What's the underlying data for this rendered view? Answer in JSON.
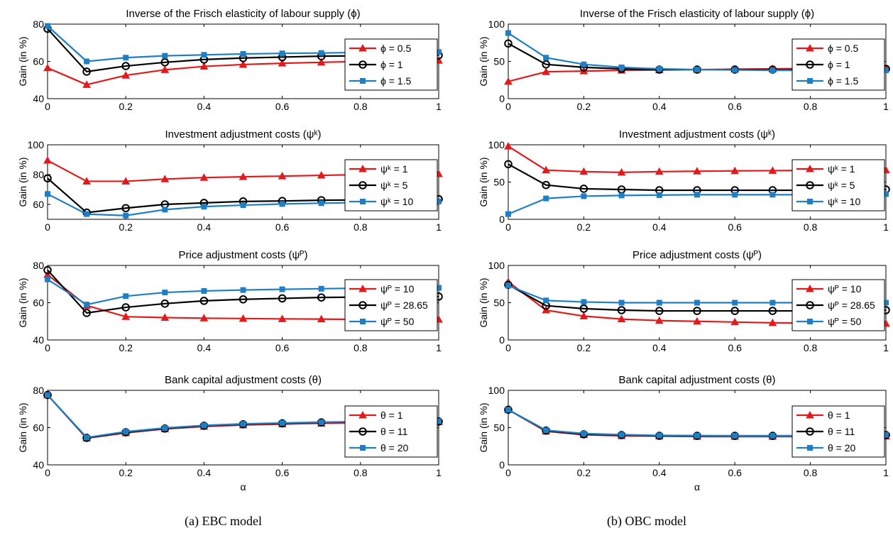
{
  "captions": [
    "(a)  EBC model",
    "(b)  OBC model"
  ],
  "colors": {
    "red": "#e31a1c",
    "black": "#000000",
    "blue": "#1f7fc4"
  },
  "chart_data": [
    {
      "type": "line",
      "panel": "a1",
      "title": "Inverse of the Frisch elasticity of labour supply (ϕ)",
      "xlabel": "",
      "ylabel": "Gain (in %)",
      "xlim": [
        0,
        1
      ],
      "ylim": [
        40,
        80
      ],
      "yticks": [
        40,
        60,
        80
      ],
      "xticks": [
        0,
        0.2,
        0.4,
        0.6,
        0.8,
        1
      ],
      "x": [
        0,
        0.1,
        0.2,
        0.3,
        0.4,
        0.5,
        0.6,
        0.7,
        0.8,
        1
      ],
      "series": [
        {
          "name": "ϕ = 0.5",
          "color": "#e31a1c",
          "marker": "triangle",
          "values": [
            56.5,
            47.5,
            52.5,
            55.5,
            57.3,
            58.3,
            59,
            59.5,
            60,
            60.5
          ]
        },
        {
          "name": "ϕ = 1",
          "color": "#000000",
          "marker": "circle",
          "values": [
            77.5,
            54.5,
            57.5,
            59.5,
            61,
            61.8,
            62.3,
            62.8,
            63,
            63.3
          ]
        },
        {
          "name": "ϕ = 1.5",
          "color": "#1f7fc4",
          "marker": "square",
          "values": [
            79,
            60,
            62,
            63,
            63.5,
            64,
            64.3,
            64.5,
            64.8,
            65
          ]
        }
      ]
    },
    {
      "type": "line",
      "panel": "a2",
      "title": "Investment adjustment costs (ψᵏ)",
      "xlabel": "",
      "ylabel": "Gain (in %)",
      "xlim": [
        0,
        1
      ],
      "ylim": [
        50,
        100
      ],
      "yticks": [
        60,
        80,
        100
      ],
      "xticks": [
        0,
        0.2,
        0.4,
        0.6,
        0.8,
        1
      ],
      "x": [
        0,
        0.1,
        0.2,
        0.3,
        0.4,
        0.5,
        0.6,
        0.7,
        0.8,
        1
      ],
      "series": [
        {
          "name": "ψᵏ = 1",
          "color": "#e31a1c",
          "marker": "triangle",
          "values": [
            89.5,
            75.5,
            75.5,
            77,
            78,
            78.5,
            79,
            79.5,
            80,
            80.5
          ]
        },
        {
          "name": "ψᵏ = 5",
          "color": "#000000",
          "marker": "circle",
          "values": [
            77.5,
            54.5,
            57.5,
            60,
            61,
            62,
            62.3,
            62.8,
            63,
            63.5
          ]
        },
        {
          "name": "ψᵏ = 10",
          "color": "#1f7fc4",
          "marker": "square",
          "values": [
            67,
            53.5,
            52.5,
            56.5,
            58.5,
            59.5,
            60.3,
            60.8,
            61.3,
            62
          ]
        }
      ]
    },
    {
      "type": "line",
      "panel": "a3",
      "title": "Price adjustment costs (ψᴾ)",
      "xlabel": "",
      "ylabel": "Gain (in %)",
      "xlim": [
        0,
        1
      ],
      "ylim": [
        40,
        80
      ],
      "yticks": [
        40,
        60,
        80
      ],
      "xticks": [
        0,
        0.2,
        0.4,
        0.6,
        0.8,
        1
      ],
      "x": [
        0,
        0.1,
        0.2,
        0.3,
        0.4,
        0.5,
        0.6,
        0.7,
        0.8,
        1
      ],
      "series": [
        {
          "name": "ψᴾ = 10",
          "color": "#e31a1c",
          "marker": "triangle",
          "values": [
            75,
            58.5,
            52.5,
            52,
            51.7,
            51.5,
            51.3,
            51.2,
            51,
            51
          ]
        },
        {
          "name": "ψᴾ = 28.65",
          "color": "#000000",
          "marker": "circle",
          "values": [
            77.5,
            54.5,
            57.5,
            59.5,
            61,
            61.8,
            62.3,
            62.8,
            63,
            63.3
          ]
        },
        {
          "name": "ψᴾ = 50",
          "color": "#1f7fc4",
          "marker": "square",
          "values": [
            72.5,
            59,
            63.5,
            65.5,
            66.3,
            66.8,
            67.2,
            67.5,
            67.8,
            68
          ]
        }
      ]
    },
    {
      "type": "line",
      "panel": "a4",
      "title": "Bank capital adjustment costs (θ)",
      "xlabel": "α",
      "ylabel": "Gain (in %)",
      "xlim": [
        0,
        1
      ],
      "ylim": [
        40,
        80
      ],
      "yticks": [
        40,
        60,
        80
      ],
      "xticks": [
        0,
        0.2,
        0.4,
        0.6,
        0.8,
        1
      ],
      "x": [
        0,
        0.1,
        0.2,
        0.3,
        0.4,
        0.5,
        0.6,
        0.7,
        0.8,
        1
      ],
      "series": [
        {
          "name": "θ = 1",
          "color": "#e31a1c",
          "marker": "triangle",
          "values": [
            77.5,
            54.3,
            57.2,
            59.3,
            60.6,
            61.4,
            61.9,
            62.3,
            62.6,
            63.1
          ]
        },
        {
          "name": "θ = 11",
          "color": "#000000",
          "marker": "circle",
          "values": [
            77.5,
            54.5,
            57.5,
            59.5,
            61,
            61.8,
            62.3,
            62.8,
            63,
            63.3
          ]
        },
        {
          "name": "θ = 20",
          "color": "#1f7fc4",
          "marker": "square",
          "values": [
            77.5,
            54.7,
            57.8,
            59.8,
            61.2,
            62,
            62.5,
            62.9,
            63.2,
            63.5
          ]
        }
      ]
    },
    {
      "type": "line",
      "panel": "b1",
      "title": "Inverse of the Frisch elasticity of labour supply (ϕ)",
      "xlabel": "",
      "ylabel": "Gain (in %)",
      "xlim": [
        0,
        1
      ],
      "ylim": [
        0,
        100
      ],
      "yticks": [
        0,
        50,
        100
      ],
      "xticks": [
        0,
        0.2,
        0.4,
        0.6,
        0.8,
        1
      ],
      "x": [
        0,
        0.1,
        0.2,
        0.3,
        0.4,
        0.5,
        0.6,
        0.7,
        0.8,
        1
      ],
      "series": [
        {
          "name": "ϕ = 0.5",
          "color": "#e31a1c",
          "marker": "triangle",
          "values": [
            23,
            36,
            37,
            38,
            38.5,
            39,
            39.5,
            40,
            40.5,
            41
          ]
        },
        {
          "name": "ϕ = 1",
          "color": "#000000",
          "marker": "circle",
          "values": [
            74,
            46,
            42,
            40,
            39,
            39,
            39,
            39,
            39,
            40
          ]
        },
        {
          "name": "ϕ = 1.5",
          "color": "#1f7fc4",
          "marker": "square",
          "values": [
            88,
            55,
            46,
            42,
            40,
            39,
            38.5,
            38,
            38,
            38
          ]
        }
      ]
    },
    {
      "type": "line",
      "panel": "b2",
      "title": "Investment adjustment costs (ψᵏ)",
      "xlabel": "",
      "ylabel": "Gain (in %)",
      "xlim": [
        0,
        1
      ],
      "ylim": [
        0,
        100
      ],
      "yticks": [
        0,
        50,
        100
      ],
      "xticks": [
        0,
        0.2,
        0.4,
        0.6,
        0.8,
        1
      ],
      "x": [
        0,
        0.1,
        0.2,
        0.3,
        0.4,
        0.5,
        0.6,
        0.7,
        0.8,
        1
      ],
      "series": [
        {
          "name": "ψᵏ = 1",
          "color": "#e31a1c",
          "marker": "triangle",
          "values": [
            98,
            66,
            64,
            63,
            64,
            64.5,
            65,
            65.3,
            65.7,
            66
          ]
        },
        {
          "name": "ψᵏ = 5",
          "color": "#000000",
          "marker": "circle",
          "values": [
            74,
            46,
            41,
            40,
            39,
            39,
            39,
            39,
            39,
            40
          ]
        },
        {
          "name": "ψᵏ = 10",
          "color": "#1f7fc4",
          "marker": "square",
          "values": [
            7,
            28,
            31,
            32,
            32.5,
            33,
            33,
            33,
            33,
            34
          ]
        }
      ]
    },
    {
      "type": "line",
      "panel": "b3",
      "title": "Price adjustment costs (ψᴾ)",
      "xlabel": "",
      "ylabel": "Gain (in %)",
      "xlim": [
        0,
        1
      ],
      "ylim": [
        0,
        100
      ],
      "yticks": [
        0,
        50,
        100
      ],
      "xticks": [
        0,
        0.2,
        0.4,
        0.6,
        0.8,
        1
      ],
      "x": [
        0,
        0.1,
        0.2,
        0.3,
        0.4,
        0.5,
        0.6,
        0.7,
        0.8,
        1
      ],
      "series": [
        {
          "name": "ψᴾ = 10",
          "color": "#e31a1c",
          "marker": "triangle",
          "values": [
            78,
            40,
            32,
            28,
            26,
            25,
            24,
            23,
            22.5,
            22
          ]
        },
        {
          "name": "ψᴾ = 28.65",
          "color": "#000000",
          "marker": "circle",
          "values": [
            74,
            46,
            42,
            40,
            39,
            39,
            39,
            39,
            39,
            40
          ]
        },
        {
          "name": "ψᴾ = 50",
          "color": "#1f7fc4",
          "marker": "square",
          "values": [
            73,
            53,
            51,
            50,
            50,
            50,
            50,
            50,
            50,
            50
          ]
        }
      ]
    },
    {
      "type": "line",
      "panel": "b4",
      "title": "Bank capital adjustment costs (θ)",
      "xlabel": "α",
      "ylabel": "Gain (in %)",
      "xlim": [
        0,
        1
      ],
      "ylim": [
        0,
        100
      ],
      "yticks": [
        0,
        50,
        100
      ],
      "xticks": [
        0,
        0.2,
        0.4,
        0.6,
        0.8,
        1
      ],
      "x": [
        0,
        0.1,
        0.2,
        0.3,
        0.4,
        0.5,
        0.6,
        0.7,
        0.8,
        1
      ],
      "series": [
        {
          "name": "θ = 1",
          "color": "#e31a1c",
          "marker": "triangle",
          "values": [
            74,
            45,
            40.5,
            39,
            38.5,
            38,
            38,
            38,
            38,
            38.5
          ]
        },
        {
          "name": "θ = 11",
          "color": "#000000",
          "marker": "circle",
          "values": [
            74,
            46,
            41,
            40,
            39,
            39,
            39,
            39,
            39,
            40
          ]
        },
        {
          "name": "θ = 20",
          "color": "#1f7fc4",
          "marker": "square",
          "values": [
            74,
            46.5,
            42,
            40.5,
            39.5,
            39.3,
            39.2,
            39.2,
            39.2,
            40.2
          ]
        }
      ]
    }
  ]
}
